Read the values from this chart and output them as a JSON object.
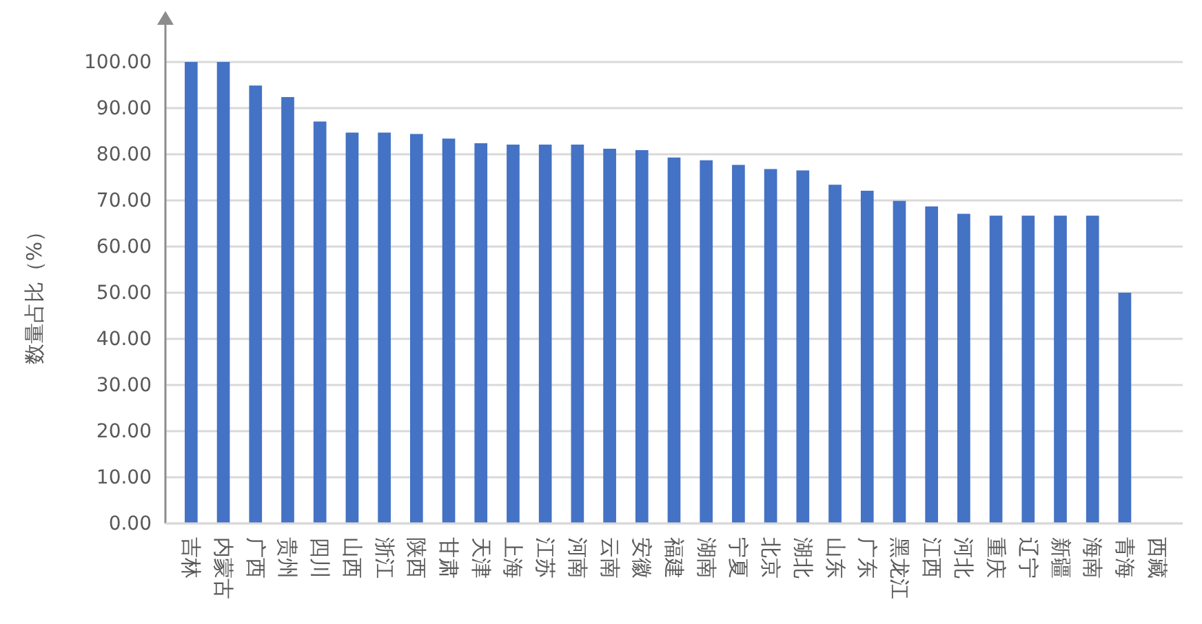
{
  "chart_data": {
    "type": "bar",
    "ylabel": "数量占比（%）",
    "categories": [
      "吉林",
      "内蒙古",
      "广西",
      "贵州",
      "四川",
      "山西",
      "浙江",
      "陕西",
      "甘肃",
      "天津",
      "上海",
      "江苏",
      "河南",
      "云南",
      "安徽",
      "福建",
      "湖南",
      "宁夏",
      "北京",
      "湖北",
      "山东",
      "广东",
      "黑龙江",
      "江西",
      "河北",
      "重庆",
      "辽宁",
      "新疆",
      "海南",
      "青海",
      "西藏"
    ],
    "values": [
      100,
      100,
      94.9,
      92.4,
      87.1,
      84.7,
      84.7,
      84.4,
      83.4,
      82.4,
      82.1,
      82.1,
      82.1,
      81.2,
      80.9,
      79.3,
      78.7,
      77.7,
      76.8,
      76.5,
      73.4,
      72.1,
      69.9,
      68.7,
      67.1,
      66.7,
      66.7,
      66.7,
      66.7,
      50,
      0
    ],
    "color": "#4472c4",
    "ylim": [
      0,
      100
    ],
    "yticks": [
      {
        "value": 0,
        "label": "0.00"
      },
      {
        "value": 10,
        "label": "10.00"
      },
      {
        "value": 20,
        "label": "20.00"
      },
      {
        "value": 30,
        "label": "30.00"
      },
      {
        "value": 40,
        "label": "40.00"
      },
      {
        "value": 50,
        "label": "50.00"
      },
      {
        "value": 60,
        "label": "60.00"
      },
      {
        "value": 70,
        "label": "70.00"
      },
      {
        "value": 80,
        "label": "80.00"
      },
      {
        "value": 90,
        "label": "90.00"
      },
      {
        "value": 100,
        "label": "100.00"
      }
    ],
    "grid": "y"
  }
}
